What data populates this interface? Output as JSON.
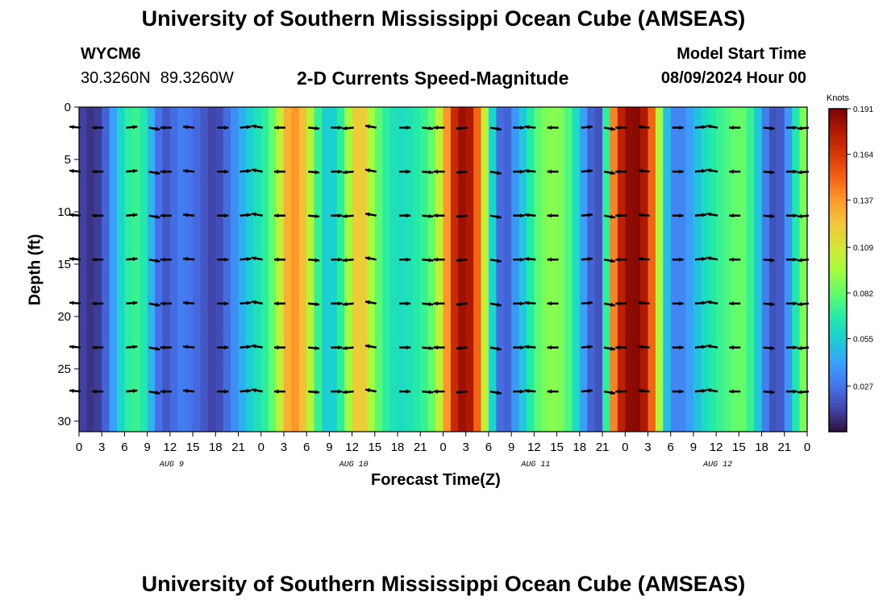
{
  "header": {
    "title": "University of Southern Mississippi Ocean Cube (AMSEAS)",
    "station_id": "WYCM6",
    "latitude": "30.3260N",
    "longitude": "89.3260W",
    "subtitle": "2-D Currents Speed-Magnitude",
    "model_start_label": "Model Start Time",
    "model_start_value": "08/09/2024 Hour 00"
  },
  "footer": {
    "title": "University of Southern Mississippi Ocean Cube (AMSEAS)"
  },
  "chart_data": {
    "type": "heatmap",
    "xlabel": "Forecast Time(Z)",
    "ylabel": "Depth (ft)",
    "x_range_hours": [
      0,
      96
    ],
    "y_range_ft": [
      0,
      31
    ],
    "y_ticks": [
      0,
      5,
      10,
      15,
      20,
      25,
      30
    ],
    "x_tick_labels": [
      "0",
      "3",
      "6",
      "9",
      "12",
      "15",
      "18",
      "21",
      "0",
      "3",
      "6",
      "9",
      "12",
      "15",
      "18",
      "21",
      "0",
      "3",
      "6",
      "9",
      "12",
      "15",
      "18",
      "21",
      "0",
      "3",
      "6",
      "9",
      "12",
      "15",
      "18",
      "21",
      "0"
    ],
    "date_labels": [
      {
        "label": "AUG 9",
        "hour": 12
      },
      {
        "label": "AUG 10",
        "hour": 36
      },
      {
        "label": "AUG 11",
        "hour": 60
      },
      {
        "label": "AUG 12",
        "hour": 84
      }
    ],
    "colorbar": {
      "title": "Knots",
      "min": 0.0,
      "max": 0.191,
      "tick_labels": [
        "0.191",
        "0.164",
        "0.137",
        "0.109",
        "0.082",
        "0.055",
        "0.027"
      ],
      "colors": [
        "#30123b",
        "#4145ab",
        "#4675ed",
        "#39a2fc",
        "#1bcfd4",
        "#24eca6",
        "#61fc6c",
        "#a4fc3b",
        "#d1e834",
        "#f3c63a",
        "#fe9b2d",
        "#f36315",
        "#d93806",
        "#b11901",
        "#7a0403"
      ]
    },
    "speed_profile_knots": [
      {
        "hour": 0,
        "speed": 0.015
      },
      {
        "hour": 1,
        "speed": 0.01
      },
      {
        "hour": 2,
        "speed": 0.008
      },
      {
        "hour": 3,
        "speed": 0.015
      },
      {
        "hour": 4,
        "speed": 0.03
      },
      {
        "hour": 5,
        "speed": 0.05
      },
      {
        "hour": 6,
        "speed": 0.065
      },
      {
        "hour": 7,
        "speed": 0.075
      },
      {
        "hour": 8,
        "speed": 0.072
      },
      {
        "hour": 9,
        "speed": 0.06
      },
      {
        "hour": 10,
        "speed": 0.035
      },
      {
        "hour": 11,
        "speed": 0.018
      },
      {
        "hour": 12,
        "speed": 0.02
      },
      {
        "hour": 13,
        "speed": 0.03
      },
      {
        "hour": 14,
        "speed": 0.03
      },
      {
        "hour": 15,
        "speed": 0.025
      },
      {
        "hour": 16,
        "speed": 0.022
      },
      {
        "hour": 17,
        "speed": 0.015
      },
      {
        "hour": 18,
        "speed": 0.012
      },
      {
        "hour": 19,
        "speed": 0.02
      },
      {
        "hour": 20,
        "speed": 0.03
      },
      {
        "hour": 21,
        "speed": 0.04
      },
      {
        "hour": 22,
        "speed": 0.05
      },
      {
        "hour": 23,
        "speed": 0.06
      },
      {
        "hour": 24,
        "speed": 0.065
      },
      {
        "hour": 25,
        "speed": 0.075
      },
      {
        "hour": 26,
        "speed": 0.09
      },
      {
        "hour": 27,
        "speed": 0.12
      },
      {
        "hour": 28,
        "speed": 0.14
      },
      {
        "hour": 29,
        "speed": 0.135
      },
      {
        "hour": 30,
        "speed": 0.115
      },
      {
        "hour": 31,
        "speed": 0.085
      },
      {
        "hour": 32,
        "speed": 0.06
      },
      {
        "hour": 33,
        "speed": 0.05
      },
      {
        "hour": 34,
        "speed": 0.06
      },
      {
        "hour": 35,
        "speed": 0.08
      },
      {
        "hour": 36,
        "speed": 0.11
      },
      {
        "hour": 37,
        "speed": 0.13
      },
      {
        "hour": 38,
        "speed": 0.11
      },
      {
        "hour": 39,
        "speed": 0.085
      },
      {
        "hour": 40,
        "speed": 0.075
      },
      {
        "hour": 41,
        "speed": 0.065
      },
      {
        "hour": 42,
        "speed": 0.06
      },
      {
        "hour": 43,
        "speed": 0.06
      },
      {
        "hour": 44,
        "speed": 0.065
      },
      {
        "hour": 45,
        "speed": 0.07
      },
      {
        "hour": 46,
        "speed": 0.075
      },
      {
        "hour": 47,
        "speed": 0.09
      },
      {
        "hour": 48,
        "speed": 0.115
      },
      {
        "hour": 49,
        "speed": 0.16
      },
      {
        "hour": 50,
        "speed": 0.18
      },
      {
        "hour": 51,
        "speed": 0.185
      },
      {
        "hour": 52,
        "speed": 0.17
      },
      {
        "hour": 53,
        "speed": 0.13
      },
      {
        "hour": 54,
        "speed": 0.08
      },
      {
        "hour": 55,
        "speed": 0.035
      },
      {
        "hour": 56,
        "speed": 0.015
      },
      {
        "hour": 57,
        "speed": 0.03
      },
      {
        "hour": 58,
        "speed": 0.045
      },
      {
        "hour": 59,
        "speed": 0.06
      },
      {
        "hour": 60,
        "speed": 0.075
      },
      {
        "hour": 61,
        "speed": 0.085
      },
      {
        "hour": 62,
        "speed": 0.09
      },
      {
        "hour": 63,
        "speed": 0.09
      },
      {
        "hour": 64,
        "speed": 0.085
      },
      {
        "hour": 65,
        "speed": 0.07
      },
      {
        "hour": 66,
        "speed": 0.05
      },
      {
        "hour": 67,
        "speed": 0.03
      },
      {
        "hour": 68,
        "speed": 0.015
      },
      {
        "hour": 69,
        "speed": 0.02
      },
      {
        "hour": 70,
        "speed": 0.12
      },
      {
        "hour": 71,
        "speed": 0.165
      },
      {
        "hour": 72,
        "speed": 0.182
      },
      {
        "hour": 73,
        "speed": 0.19
      },
      {
        "hour": 74,
        "speed": 0.185
      },
      {
        "hour": 75,
        "speed": 0.17
      },
      {
        "hour": 76,
        "speed": 0.13
      },
      {
        "hour": 77,
        "speed": 0.065
      },
      {
        "hour": 78,
        "speed": 0.035
      },
      {
        "hour": 79,
        "speed": 0.03
      },
      {
        "hour": 80,
        "speed": 0.035
      },
      {
        "hour": 81,
        "speed": 0.045
      },
      {
        "hour": 82,
        "speed": 0.055
      },
      {
        "hour": 83,
        "speed": 0.065
      },
      {
        "hour": 84,
        "speed": 0.07
      },
      {
        "hour": 85,
        "speed": 0.075
      },
      {
        "hour": 86,
        "speed": 0.08
      },
      {
        "hour": 87,
        "speed": 0.085
      },
      {
        "hour": 88,
        "speed": 0.08
      },
      {
        "hour": 89,
        "speed": 0.065
      },
      {
        "hour": 90,
        "speed": 0.04
      },
      {
        "hour": 91,
        "speed": 0.02
      },
      {
        "hour": 92,
        "speed": 0.015
      },
      {
        "hour": 93,
        "speed": 0.025
      },
      {
        "hour": 94,
        "speed": 0.05
      },
      {
        "hour": 95,
        "speed": 0.08
      },
      {
        "hour": 96,
        "speed": 0.095
      }
    ]
  }
}
